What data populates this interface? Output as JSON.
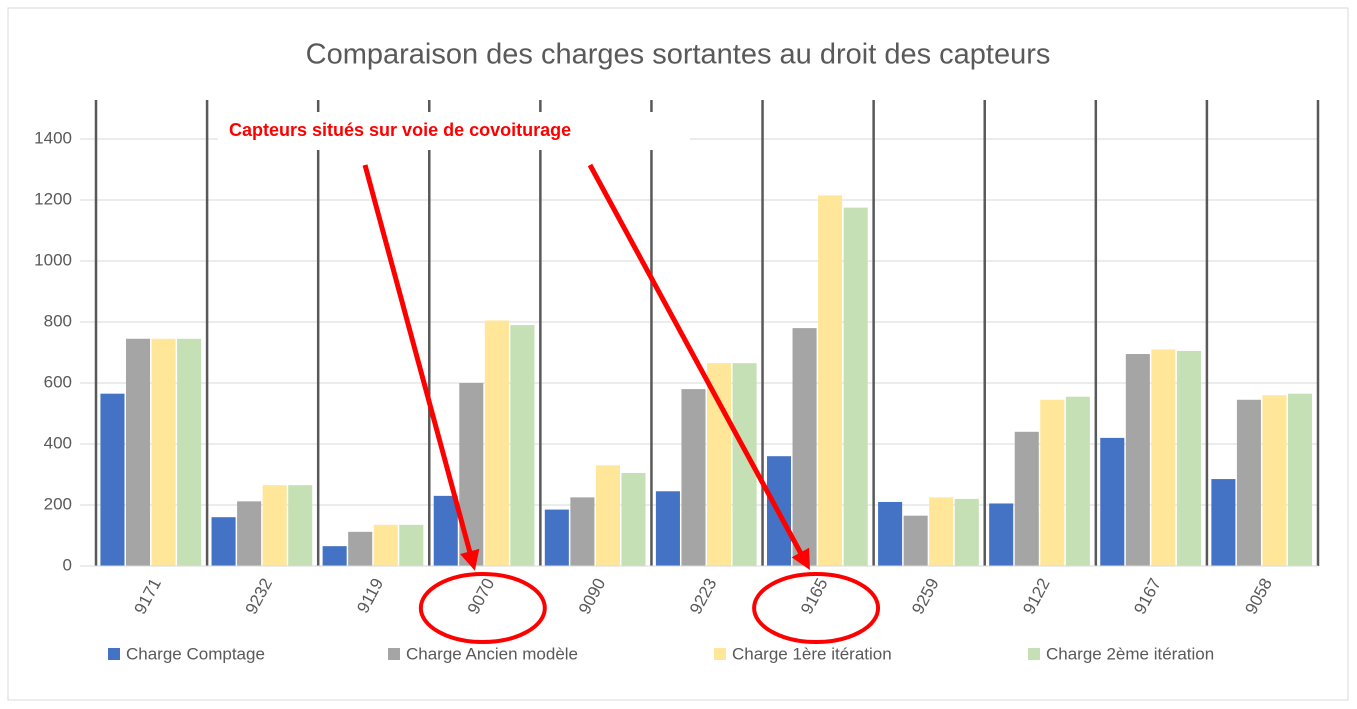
{
  "chart_data": {
    "type": "bar",
    "title": "Comparaison des charges sortantes au droit des capteurs",
    "annotation": "Capteurs situés sur voie de covoiturage",
    "categories": [
      "9171",
      "9232",
      "9119",
      "9070",
      "9090",
      "9223",
      "9165",
      "9259",
      "9122",
      "9167",
      "9058"
    ],
    "series": [
      {
        "name": "Charge Comptage",
        "color": "#4472c4",
        "values": [
          565,
          160,
          65,
          230,
          185,
          245,
          360,
          210,
          205,
          420,
          285
        ]
      },
      {
        "name": "Charge Ancien modèle",
        "color": "#a5a5a5",
        "values": [
          745,
          212,
          112,
          600,
          225,
          580,
          780,
          165,
          440,
          695,
          545
        ]
      },
      {
        "name": "Charge 1ère itération",
        "color": "#ffe699",
        "values": [
          745,
          265,
          135,
          805,
          330,
          665,
          1215,
          225,
          545,
          710,
          560
        ]
      },
      {
        "name": "Charge 2ème itération",
        "color": "#c5e0b4",
        "values": [
          745,
          265,
          135,
          790,
          305,
          665,
          1175,
          220,
          555,
          705,
          565
        ]
      }
    ],
    "ylim": [
      0,
      1400
    ],
    "yticks": [
      0,
      200,
      400,
      600,
      800,
      1000,
      1200,
      1400
    ],
    "grid": true
  }
}
